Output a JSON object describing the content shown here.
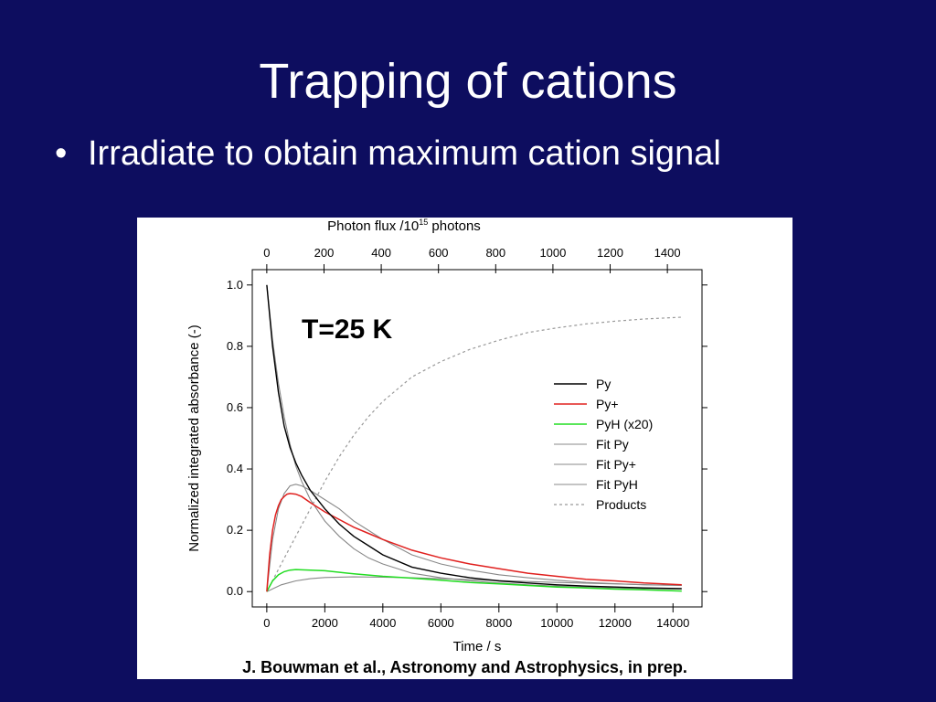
{
  "slide": {
    "title": "Trapping of cations",
    "bullet": "Irradiate to obtain maximum cation signal",
    "citation": "J. Bouwman et al., Astronomy and Astrophysics, in prep."
  },
  "chart_data": {
    "type": "line",
    "annotation": "T=25 K",
    "xlabel": "Time / s",
    "ylabel": "Normalized integrated absorbance (-)",
    "top_axis_label_prefix": "Photon flux /10",
    "top_axis_label_exponent": "15",
    "top_axis_label_suffix": " photons",
    "xlim": [
      -500,
      15000
    ],
    "ylim": [
      -0.05,
      1.05
    ],
    "x_ticks": [
      0,
      2000,
      4000,
      6000,
      8000,
      10000,
      12000,
      14000
    ],
    "y_ticks": [
      0.0,
      0.2,
      0.4,
      0.6,
      0.8,
      1.0
    ],
    "y_tick_labels": [
      "0.0",
      "0.2",
      "0.4",
      "0.6",
      "0.8",
      "1.0"
    ],
    "top_ticks": [
      0,
      200,
      400,
      600,
      800,
      1000,
      1200,
      1400
    ],
    "top_axis_range": [
      0,
      1450
    ],
    "legend_position": "right-middle",
    "series": [
      {
        "name": "Py",
        "color": "#000000",
        "dash": "",
        "width": 1.4,
        "x": [
          0,
          200,
          400,
          600,
          800,
          1000,
          1200,
          1500,
          2000,
          2500,
          3000,
          3500,
          4000,
          5000,
          6000,
          7000,
          8000,
          9000,
          10000,
          11000,
          12000,
          13000,
          14300
        ],
        "y": [
          1.0,
          0.8,
          0.65,
          0.54,
          0.47,
          0.42,
          0.38,
          0.33,
          0.27,
          0.22,
          0.18,
          0.15,
          0.12,
          0.08,
          0.06,
          0.045,
          0.035,
          0.028,
          0.022,
          0.018,
          0.015,
          0.012,
          0.01
        ]
      },
      {
        "name": "Py+",
        "color": "#e0201e",
        "dash": "",
        "width": 1.5,
        "x": [
          0,
          100,
          200,
          300,
          400,
          500,
          600,
          700,
          800,
          1000,
          1200,
          1500,
          2000,
          2500,
          3000,
          3500,
          4000,
          5000,
          6000,
          7000,
          8000,
          9000,
          10000,
          11000,
          12000,
          13000,
          14300
        ],
        "y": [
          0.0,
          0.12,
          0.2,
          0.25,
          0.28,
          0.3,
          0.31,
          0.318,
          0.32,
          0.318,
          0.31,
          0.29,
          0.26,
          0.235,
          0.21,
          0.19,
          0.17,
          0.135,
          0.11,
          0.09,
          0.075,
          0.06,
          0.05,
          0.04,
          0.035,
          0.028,
          0.022
        ]
      },
      {
        "name": "PyH (x20)",
        "color": "#22dd22",
        "dash": "",
        "width": 1.5,
        "x": [
          0,
          200,
          400,
          600,
          800,
          1000,
          1500,
          2000,
          3000,
          4000,
          5000,
          6000,
          7000,
          8000,
          9000,
          10000,
          11000,
          12000,
          13000,
          14300
        ],
        "y": [
          0.0,
          0.035,
          0.055,
          0.065,
          0.07,
          0.072,
          0.07,
          0.068,
          0.058,
          0.05,
          0.044,
          0.037,
          0.03,
          0.025,
          0.02,
          0.015,
          0.012,
          0.008,
          0.006,
          0.002
        ]
      },
      {
        "name": "Fit Py",
        "color": "#888888",
        "dash": "",
        "width": 1.1,
        "x": [
          0,
          200,
          400,
          600,
          800,
          1000,
          1200,
          1500,
          2000,
          2500,
          3000,
          3500,
          4000,
          5000,
          6000,
          7000,
          8000,
          9000,
          10000,
          11000,
          12000,
          13000,
          14300
        ],
        "y": [
          1.0,
          0.82,
          0.68,
          0.57,
          0.48,
          0.41,
          0.36,
          0.3,
          0.23,
          0.18,
          0.14,
          0.11,
          0.09,
          0.06,
          0.045,
          0.035,
          0.028,
          0.022,
          0.018,
          0.015,
          0.012,
          0.01,
          0.008
        ]
      },
      {
        "name": "Fit Py+",
        "color": "#888888",
        "dash": "",
        "width": 1.1,
        "x": [
          0,
          200,
          400,
          600,
          800,
          1000,
          1200,
          1500,
          2000,
          2500,
          3000,
          3500,
          4000,
          5000,
          6000,
          7000,
          8000,
          9000,
          10000,
          11000,
          12000,
          13000,
          14300
        ],
        "y": [
          0.0,
          0.17,
          0.27,
          0.32,
          0.345,
          0.35,
          0.345,
          0.33,
          0.3,
          0.27,
          0.23,
          0.2,
          0.17,
          0.12,
          0.09,
          0.07,
          0.055,
          0.045,
          0.037,
          0.03,
          0.026,
          0.022,
          0.02
        ]
      },
      {
        "name": "Fit PyH",
        "color": "#888888",
        "dash": "",
        "width": 1.1,
        "x": [
          0,
          500,
          1000,
          1500,
          2000,
          3000,
          4000,
          5000,
          6000,
          8000,
          10000,
          12000,
          14300
        ],
        "y": [
          0.0,
          0.022,
          0.035,
          0.042,
          0.046,
          0.048,
          0.047,
          0.045,
          0.042,
          0.036,
          0.03,
          0.025,
          0.02
        ]
      },
      {
        "name": "Products",
        "color": "#999999",
        "dash": "3,3",
        "width": 1.2,
        "x": [
          0,
          500,
          1000,
          1500,
          2000,
          2500,
          3000,
          3500,
          4000,
          4500,
          5000,
          6000,
          7000,
          8000,
          9000,
          10000,
          11000,
          12000,
          13000,
          14300
        ],
        "y": [
          0.0,
          0.09,
          0.18,
          0.27,
          0.36,
          0.44,
          0.51,
          0.57,
          0.62,
          0.66,
          0.7,
          0.75,
          0.79,
          0.82,
          0.845,
          0.86,
          0.873,
          0.882,
          0.889,
          0.895
        ]
      }
    ]
  }
}
